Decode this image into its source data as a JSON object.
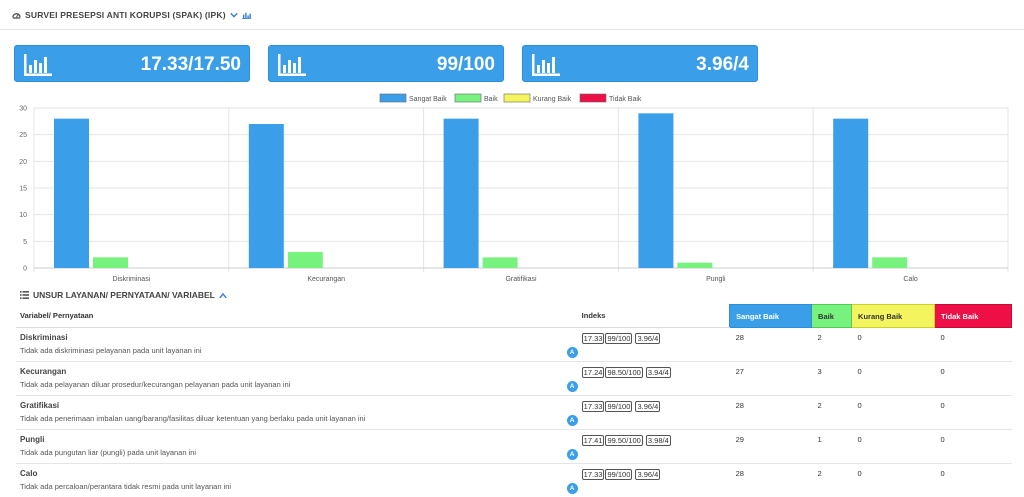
{
  "header": {
    "title": "SURVEI PRESEPSI ANTI KORUPSI (SPAK) (IPK)"
  },
  "stats": [
    {
      "value": "17.33/17.50"
    },
    {
      "value": "99/100"
    },
    {
      "value": "3.96/4"
    }
  ],
  "colors": {
    "sangat_baik": "#3a9fe8",
    "baik": "#77f27e",
    "kurang_baik": "#f4f45e",
    "tidak_baik": "#ee0f47",
    "stat_bg": "#3a9fe8"
  },
  "chart_data": {
    "type": "bar",
    "categories": [
      "Diskriminasi",
      "Kecurangan",
      "Gratifikasi",
      "Pungli",
      "Calo"
    ],
    "series": [
      {
        "name": "Sangat Baik",
        "values": [
          28,
          27,
          28,
          29,
          28
        ]
      },
      {
        "name": "Baik",
        "values": [
          2,
          3,
          2,
          1,
          2
        ]
      },
      {
        "name": "Kurang Baik",
        "values": [
          0,
          0,
          0,
          0,
          0
        ]
      },
      {
        "name": "Tidak Baik",
        "values": [
          0,
          0,
          0,
          0,
          0
        ]
      }
    ],
    "ylim": [
      0,
      30
    ],
    "yticks": [
      "0",
      "5",
      "10",
      "15",
      "20",
      "25",
      "30"
    ],
    "legend_position": "top",
    "grid": true
  },
  "section": {
    "title": "UNSUR LAYANAN/ PERNYATAAN/ VARIABEL"
  },
  "table": {
    "headers": {
      "variabel": "Variabel/ Pernyataan",
      "indeks": "Indeks",
      "sangat_baik": "Sangat Baik",
      "baik": "Baik",
      "kurang_baik": "Kurang Baik",
      "tidak_baik": "Tidak Baik"
    },
    "badge": "A",
    "rows": [
      {
        "name": "Diskriminasi",
        "statement": "Tidak ada diskriminasi pelayanan pada unit layanan ini",
        "i1": "17.33",
        "i2": "99/100",
        "i3": "3.96/4",
        "sb": "28",
        "b": "2",
        "kb": "0",
        "tb": "0"
      },
      {
        "name": "Kecurangan",
        "statement": "Tidak ada pelayanan diluar prosedur/kecurangan pelayanan pada unit layanan ini",
        "i1": "17.24",
        "i2": "98.50/100",
        "i3": "3.94/4",
        "sb": "27",
        "b": "3",
        "kb": "0",
        "tb": "0"
      },
      {
        "name": "Gratifikasi",
        "statement": "Tidak ada penerimaan imbalan uang/barang/fasilitas diluar ketentuan yang berlaku pada unit layanan ini",
        "i1": "17.33",
        "i2": "99/100",
        "i3": "3.96/4",
        "sb": "28",
        "b": "2",
        "kb": "0",
        "tb": "0"
      },
      {
        "name": "Pungli",
        "statement": "Tidak ada pungutan liar (pungli) pada unit layanan ini",
        "i1": "17.41",
        "i2": "99.50/100",
        "i3": "3.98/4",
        "sb": "29",
        "b": "1",
        "kb": "0",
        "tb": "0"
      },
      {
        "name": "Calo",
        "statement": "Tidak ada percaloan/perantara tidak resmi pada unit layanan ini",
        "i1": "17.33",
        "i2": "99/100",
        "i3": "3.96/4",
        "sb": "28",
        "b": "2",
        "kb": "0",
        "tb": "0"
      }
    ]
  }
}
